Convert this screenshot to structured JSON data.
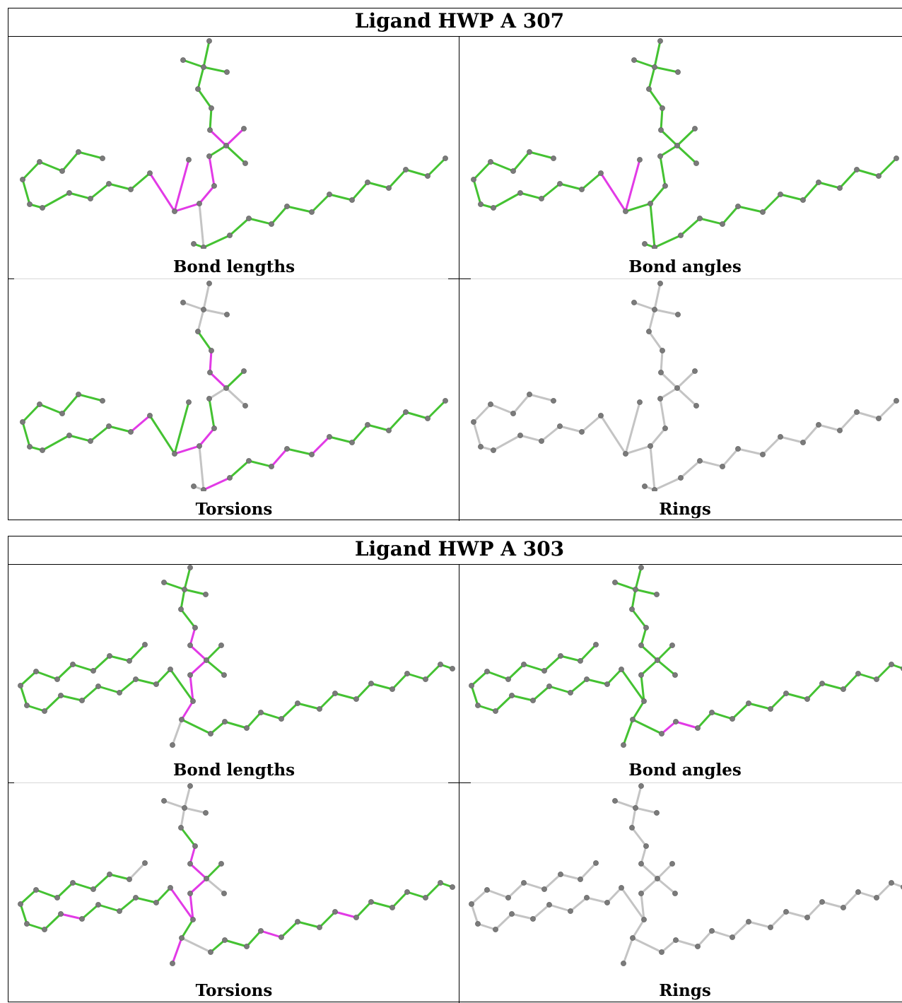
{
  "panels": [
    {
      "title": "Ligand HWP A 307",
      "cells": [
        {
          "caption": "Bond lengths",
          "highlight": "magenta",
          "set": "A_len"
        },
        {
          "caption": "Bond angles",
          "highlight": "magenta",
          "set": "A_ang"
        },
        {
          "caption": "Torsions",
          "highlight": "magenta",
          "set": "A_tor"
        },
        {
          "caption": "Rings",
          "highlight": "none",
          "set": "gray"
        }
      ]
    },
    {
      "title": "Ligand HWP A 303",
      "cells": [
        {
          "caption": "Bond lengths",
          "highlight": "magenta",
          "set": "B_len"
        },
        {
          "caption": "Bond angles",
          "highlight": "magenta",
          "set": "B_ang"
        },
        {
          "caption": "Torsions",
          "highlight": "magenta",
          "set": "B_tor"
        },
        {
          "caption": "Rings",
          "highlight": "none",
          "set": "gray"
        }
      ]
    }
  ],
  "colors": {
    "good_bond": "#44c232",
    "outlier_bond": "#e23ae6",
    "unassessed_bond": "#c4c4c4",
    "atom": "#7a7a7a",
    "border": "#000000"
  }
}
